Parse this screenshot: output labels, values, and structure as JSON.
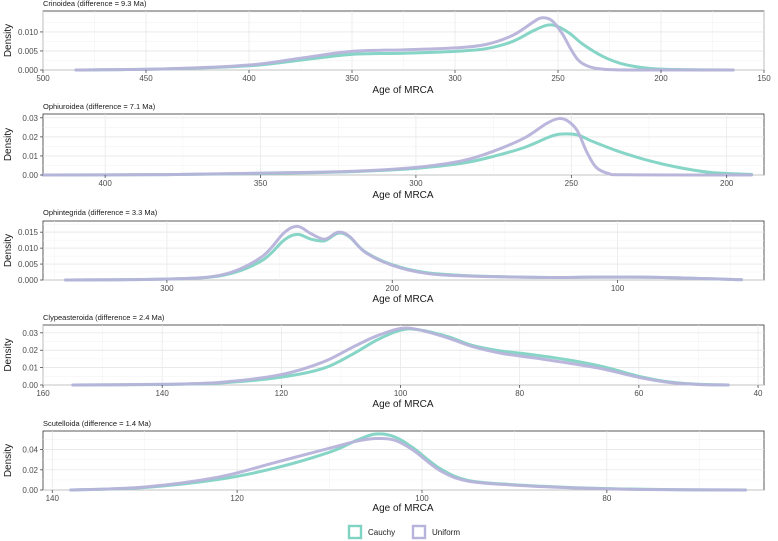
{
  "legend": {
    "position": "bottom",
    "items": [
      {
        "label": "Cauchy",
        "color": "#7fd3c3"
      },
      {
        "label": "Uniform",
        "color": "#b7b3da"
      }
    ]
  },
  "chart_data": [
    {
      "type": "line",
      "title": "Crinoidea (difference = 9.3 Ma)",
      "xlabel": "Age of MRCA",
      "ylabel": "Density",
      "x_reversed": true,
      "xlim": [
        500,
        150
      ],
      "ylim": [
        0,
        0.0155
      ],
      "x_ticks": [
        500,
        450,
        400,
        350,
        300,
        250,
        200,
        150
      ],
      "y_ticks": [
        0.0,
        0.005,
        0.01
      ],
      "y_tick_labels": [
        "0.000",
        "0.005",
        "0.010"
      ],
      "grid": true,
      "series": [
        {
          "name": "Cauchy",
          "points": [
            [
              484,
              0
            ],
            [
              440,
              0.0003
            ],
            [
              400,
              0.0011
            ],
            [
              375,
              0.0026
            ],
            [
              350,
              0.0041
            ],
            [
              325,
              0.0044
            ],
            [
              300,
              0.0049
            ],
            [
              285,
              0.0056
            ],
            [
              272,
              0.0075
            ],
            [
              262,
              0.0103
            ],
            [
              255,
              0.0118
            ],
            [
              250,
              0.0114
            ],
            [
              244,
              0.0095
            ],
            [
              238,
              0.0068
            ],
            [
              228,
              0.0035
            ],
            [
              218,
              0.0015
            ],
            [
              205,
              0.0004
            ],
            [
              190,
              0.0001
            ],
            [
              165,
              0
            ]
          ]
        },
        {
          "name": "Uniform",
          "points": [
            [
              484,
              0
            ],
            [
              440,
              0.0003
            ],
            [
              400,
              0.0013
            ],
            [
              375,
              0.0031
            ],
            [
              350,
              0.0049
            ],
            [
              325,
              0.0053
            ],
            [
              300,
              0.0058
            ],
            [
              285,
              0.0067
            ],
            [
              272,
              0.0091
            ],
            [
              262,
              0.0126
            ],
            [
              258,
              0.0137
            ],
            [
              253,
              0.013
            ],
            [
              248,
              0.0096
            ],
            [
              244,
              0.0057
            ],
            [
              240,
              0.0025
            ],
            [
              235,
              0.0009
            ],
            [
              228,
              0.0002
            ],
            [
              215,
              0
            ],
            [
              165,
              0
            ]
          ]
        }
      ]
    },
    {
      "type": "line",
      "title": "Ophiuroidea (difference = 7.1 Ma)",
      "xlabel": "Age of MRCA",
      "ylabel": "Density",
      "x_reversed": true,
      "xlim": [
        420,
        188
      ],
      "ylim": [
        0,
        0.032
      ],
      "x_ticks": [
        400,
        350,
        300,
        250,
        200
      ],
      "y_ticks": [
        0.0,
        0.01,
        0.02,
        0.03
      ],
      "y_tick_labels": [
        "0.00",
        "0.01",
        "0.02",
        "0.03"
      ],
      "grid": true,
      "series": [
        {
          "name": "Cauchy",
          "points": [
            [
              420,
              0
            ],
            [
              380,
              0.0002
            ],
            [
              350,
              0.0008
            ],
            [
              320,
              0.0018
            ],
            [
              300,
              0.0035
            ],
            [
              285,
              0.0062
            ],
            [
              275,
              0.0098
            ],
            [
              265,
              0.0145
            ],
            [
              257,
              0.02
            ],
            [
              253,
              0.0215
            ],
            [
              248,
              0.021
            ],
            [
              243,
              0.0175
            ],
            [
              235,
              0.0125
            ],
            [
              225,
              0.0075
            ],
            [
              215,
              0.0038
            ],
            [
              205,
              0.0013
            ],
            [
              192,
              0.0003
            ]
          ]
        },
        {
          "name": "Uniform",
          "points": [
            [
              420,
              0
            ],
            [
              380,
              0.0002
            ],
            [
              350,
              0.001
            ],
            [
              320,
              0.002
            ],
            [
              300,
              0.004
            ],
            [
              285,
              0.0075
            ],
            [
              275,
              0.0125
            ],
            [
              265,
              0.0195
            ],
            [
              258,
              0.027
            ],
            [
              254,
              0.0296
            ],
            [
              251,
              0.0282
            ],
            [
              248,
              0.023
            ],
            [
              245,
              0.012
            ],
            [
              242,
              0.004
            ],
            [
              238,
              0.0008
            ],
            [
              232,
              0.0001
            ],
            [
              192,
              0
            ]
          ]
        }
      ]
    },
    {
      "type": "line",
      "title": "Ophintegrida (difference = 3.3 Ma)",
      "xlabel": "Age of MRCA",
      "ylabel": "Density",
      "x_reversed": true,
      "xlim": [
        355,
        35
      ],
      "ylim": [
        0,
        0.0185
      ],
      "x_ticks": [
        300,
        200,
        100
      ],
      "y_ticks": [
        0.0,
        0.005,
        0.01,
        0.015
      ],
      "y_tick_labels": [
        "0.000",
        "0.005",
        "0.010",
        "0.015"
      ],
      "grid": true,
      "series": [
        {
          "name": "Cauchy",
          "points": [
            [
              345,
              0
            ],
            [
              300,
              0.0003
            ],
            [
              275,
              0.0015
            ],
            [
              258,
              0.006
            ],
            [
              248,
              0.0125
            ],
            [
              242,
              0.0143
            ],
            [
              236,
              0.0128
            ],
            [
              230,
              0.0123
            ],
            [
              224,
              0.0147
            ],
            [
              219,
              0.0135
            ],
            [
              212,
              0.0088
            ],
            [
              200,
              0.0048
            ],
            [
              185,
              0.0023
            ],
            [
              165,
              0.0013
            ],
            [
              130,
              0.0008
            ],
            [
              110,
              0.0009
            ],
            [
              80,
              0.0008
            ],
            [
              45,
              0.0001
            ]
          ]
        },
        {
          "name": "Uniform",
          "points": [
            [
              345,
              0
            ],
            [
              300,
              0.0003
            ],
            [
              275,
              0.0017
            ],
            [
              258,
              0.0072
            ],
            [
              248,
              0.0148
            ],
            [
              242,
              0.0168
            ],
            [
              236,
              0.0145
            ],
            [
              230,
              0.0128
            ],
            [
              224,
              0.015
            ],
            [
              219,
              0.0137
            ],
            [
              212,
              0.0087
            ],
            [
              200,
              0.0046
            ],
            [
              185,
              0.0021
            ],
            [
              165,
              0.0012
            ],
            [
              130,
              0.0008
            ],
            [
              110,
              0.0009
            ],
            [
              80,
              0.0008
            ],
            [
              45,
              0.0001
            ]
          ]
        }
      ]
    },
    {
      "type": "line",
      "title": "Clypeasteroida (difference = 2.4 Ma)",
      "xlabel": "Age of MRCA",
      "ylabel": "Density",
      "x_reversed": true,
      "xlim": [
        160,
        39
      ],
      "ylim": [
        0,
        0.0345
      ],
      "x_ticks": [
        160,
        140,
        120,
        100,
        80,
        60,
        40
      ],
      "y_ticks": [
        0.0,
        0.01,
        0.02,
        0.03
      ],
      "y_tick_labels": [
        "0.00",
        "0.01",
        "0.02",
        "0.03"
      ],
      "grid": true,
      "series": [
        {
          "name": "Cauchy",
          "points": [
            [
              155,
              0
            ],
            [
              140,
              0.0003
            ],
            [
              130,
              0.0012
            ],
            [
              120,
              0.0045
            ],
            [
              113,
              0.0095
            ],
            [
              108,
              0.0178
            ],
            [
              104,
              0.0258
            ],
            [
              100,
              0.0315
            ],
            [
              97,
              0.0318
            ],
            [
              92,
              0.0278
            ],
            [
              88,
              0.0228
            ],
            [
              83,
              0.0195
            ],
            [
              78,
              0.0175
            ],
            [
              72,
              0.0145
            ],
            [
              66,
              0.0105
            ],
            [
              60,
              0.005
            ],
            [
              55,
              0.0018
            ],
            [
              50,
              0.0004
            ],
            [
              45,
              0
            ]
          ]
        },
        {
          "name": "Uniform",
          "points": [
            [
              155,
              0
            ],
            [
              140,
              0.0004
            ],
            [
              130,
              0.0016
            ],
            [
              120,
              0.006
            ],
            [
              113,
              0.0132
            ],
            [
              108,
              0.0218
            ],
            [
              104,
              0.0282
            ],
            [
              100,
              0.0325
            ],
            [
              97,
              0.0318
            ],
            [
              92,
              0.027
            ],
            [
              88,
              0.0222
            ],
            [
              83,
              0.0182
            ],
            [
              78,
              0.0158
            ],
            [
              72,
              0.0127
            ],
            [
              66,
              0.0092
            ],
            [
              60,
              0.0044
            ],
            [
              55,
              0.0015
            ],
            [
              50,
              0.0003
            ],
            [
              45,
              0
            ]
          ]
        }
      ]
    },
    {
      "type": "line",
      "title": "Scutelloida (difference = 1.4 Ma)",
      "xlabel": "Age of MRCA",
      "ylabel": "Density",
      "x_reversed": true,
      "xlim": [
        141,
        63
      ],
      "ylim": [
        0,
        0.0585
      ],
      "x_ticks": [
        140,
        120,
        100,
        80
      ],
      "y_ticks": [
        0.0,
        0.02,
        0.04
      ],
      "y_tick_labels": [
        "0.00",
        "0.02",
        "0.04"
      ],
      "grid": true,
      "series": [
        {
          "name": "Cauchy",
          "points": [
            [
              138,
              0
            ],
            [
              130,
              0.0025
            ],
            [
              122,
              0.0105
            ],
            [
              116,
              0.0215
            ],
            [
              110,
              0.0375
            ],
            [
              107,
              0.0495
            ],
            [
              105,
              0.0555
            ],
            [
              103,
              0.0528
            ],
            [
              101,
              0.042
            ],
            [
              98,
              0.021
            ],
            [
              95,
              0.0095
            ],
            [
              90,
              0.0052
            ],
            [
              84,
              0.0025
            ],
            [
              78,
              0.001
            ],
            [
              72,
              0.0003
            ],
            [
              65,
              0
            ]
          ]
        },
        {
          "name": "Uniform",
          "points": [
            [
              138,
              0
            ],
            [
              130,
              0.003
            ],
            [
              122,
              0.0128
            ],
            [
              116,
              0.027
            ],
            [
              110,
              0.0415
            ],
            [
              107,
              0.0485
            ],
            [
              105,
              0.051
            ],
            [
              103,
              0.0495
            ],
            [
              101,
              0.0398
            ],
            [
              98,
              0.019
            ],
            [
              95,
              0.0088
            ],
            [
              90,
              0.0048
            ],
            [
              84,
              0.0022
            ],
            [
              78,
              0.0008
            ],
            [
              72,
              0.0002
            ],
            [
              65,
              0
            ]
          ]
        }
      ]
    }
  ]
}
